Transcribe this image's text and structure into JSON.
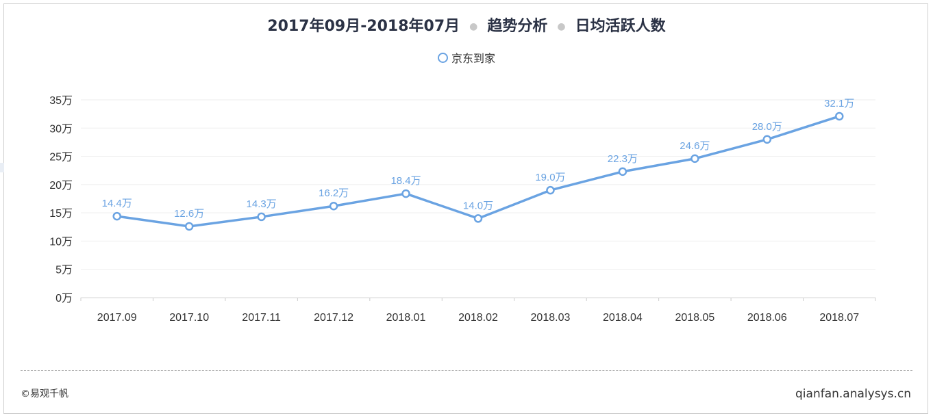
{
  "header": {
    "period": "2017年09月-2018年07月",
    "section": "趋势分析",
    "metric": "日均活跃人数"
  },
  "footer": {
    "copyright": "©易观千帆",
    "site": "qianfan.analysys.cn"
  },
  "chart_data": {
    "type": "line",
    "categories": [
      "2017.09",
      "2017.10",
      "2017.11",
      "2017.12",
      "2018.01",
      "2018.02",
      "2018.03",
      "2018.04",
      "2018.05",
      "2018.06",
      "2018.07"
    ],
    "series": [
      {
        "name": "京东到家",
        "values": [
          14.4,
          12.6,
          14.3,
          16.2,
          18.4,
          14.0,
          19.0,
          22.3,
          24.6,
          28.0,
          32.1
        ],
        "labels": [
          "14.4万",
          "12.6万",
          "14.3万",
          "16.2万",
          "18.4万",
          "14.0万",
          "19.0万",
          "22.3万",
          "24.6万",
          "28.0万",
          "32.1万"
        ],
        "color": "#6aa3e2"
      }
    ],
    "y_ticks": [
      "0万",
      "5万",
      "10万",
      "15万",
      "20万",
      "25万",
      "30万",
      "35万"
    ],
    "ylim": [
      0,
      35
    ],
    "unit": "万",
    "legend_position": "top-center",
    "grid": true
  }
}
